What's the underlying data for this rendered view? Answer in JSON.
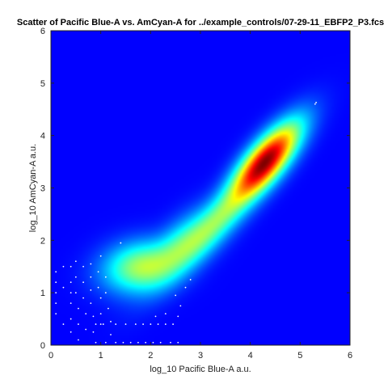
{
  "chart_data": {
    "type": "heatmap",
    "title": "Scatter of Pacific Blue-A vs. AmCyan-A for ../example_controls/07-29-11_EBFP2_P3.fcs",
    "xlabel": "log_10 Pacific Blue-A a.u.",
    "ylabel": "log_10 AmCyan-A a.u.",
    "xlim": [
      0,
      6
    ],
    "ylim": [
      0,
      6
    ],
    "xticks": [
      "0",
      "1",
      "2",
      "3",
      "4",
      "5",
      "6"
    ],
    "yticks": [
      "0",
      "1",
      "2",
      "3",
      "4",
      "5",
      "6"
    ],
    "grid": false,
    "colormap": "jet",
    "background_color": "#0000b4",
    "density_components": [
      {
        "x": 4.3,
        "y": 3.5,
        "sx": 0.5,
        "sy": 0.18,
        "angle_deg": 48,
        "weight": 1.0
      },
      {
        "x": 3.5,
        "y": 2.55,
        "sx": 0.85,
        "sy": 0.18,
        "angle_deg": 46,
        "weight": 0.22
      },
      {
        "x": 2.6,
        "y": 1.85,
        "sx": 0.55,
        "sy": 0.22,
        "angle_deg": 40,
        "weight": 0.2
      },
      {
        "x": 1.8,
        "y": 1.5,
        "sx": 0.4,
        "sy": 0.25,
        "angle_deg": 10,
        "weight": 0.26
      }
    ],
    "outlier_points": [
      [
        5.3,
        4.6
      ],
      [
        5.32,
        4.63
      ],
      [
        1.4,
        1.95
      ],
      [
        1.0,
        1.7
      ],
      [
        0.1,
        1.4
      ],
      [
        0.1,
        1.2
      ],
      [
        0.1,
        1.0
      ],
      [
        0.1,
        0.8
      ],
      [
        0.1,
        0.6
      ],
      [
        0.25,
        1.5
      ],
      [
        0.25,
        1.1
      ],
      [
        0.25,
        0.4
      ],
      [
        0.4,
        1.5
      ],
      [
        0.4,
        1.2
      ],
      [
        0.4,
        1.0
      ],
      [
        0.4,
        0.8
      ],
      [
        0.4,
        0.5
      ],
      [
        0.4,
        0.25
      ],
      [
        0.5,
        1.6
      ],
      [
        0.5,
        1.3
      ],
      [
        0.5,
        1.0
      ],
      [
        0.55,
        0.7
      ],
      [
        0.55,
        0.4
      ],
      [
        0.55,
        0.1
      ],
      [
        0.65,
        1.5
      ],
      [
        0.65,
        1.2
      ],
      [
        0.65,
        0.9
      ],
      [
        0.7,
        0.6
      ],
      [
        0.7,
        0.3
      ],
      [
        0.8,
        1.55
      ],
      [
        0.8,
        1.3
      ],
      [
        0.8,
        1.05
      ],
      [
        0.8,
        0.8
      ],
      [
        0.85,
        0.55
      ],
      [
        0.85,
        0.25
      ],
      [
        0.95,
        1.4
      ],
      [
        0.95,
        1.1
      ],
      [
        1.0,
        0.9
      ],
      [
        1.0,
        0.6
      ],
      [
        1.0,
        0.4
      ],
      [
        1.1,
        1.3
      ],
      [
        1.1,
        1.0
      ],
      [
        1.15,
        0.7
      ],
      [
        1.2,
        0.45
      ],
      [
        1.2,
        0.2
      ],
      [
        0.9,
        0.4
      ],
      [
        1.05,
        0.4
      ],
      [
        1.3,
        0.4
      ],
      [
        1.5,
        0.4
      ],
      [
        1.7,
        0.4
      ],
      [
        1.85,
        0.4
      ],
      [
        2.0,
        0.4
      ],
      [
        2.15,
        0.4
      ],
      [
        2.3,
        0.4
      ],
      [
        2.45,
        0.4
      ],
      [
        2.55,
        0.55
      ],
      [
        2.6,
        0.75
      ],
      [
        2.1,
        0.55
      ],
      [
        2.3,
        0.6
      ],
      [
        2.5,
        0.95
      ],
      [
        2.7,
        1.1
      ],
      [
        2.8,
        1.25
      ],
      [
        0.9,
        0.05
      ],
      [
        1.1,
        0.05
      ],
      [
        1.3,
        0.05
      ],
      [
        1.45,
        0.05
      ],
      [
        1.6,
        0.05
      ],
      [
        1.75,
        0.05
      ],
      [
        1.9,
        0.05
      ],
      [
        2.05,
        0.05
      ],
      [
        2.2,
        0.05
      ],
      [
        2.4,
        0.05
      ],
      [
        2.55,
        0.05
      ]
    ]
  }
}
